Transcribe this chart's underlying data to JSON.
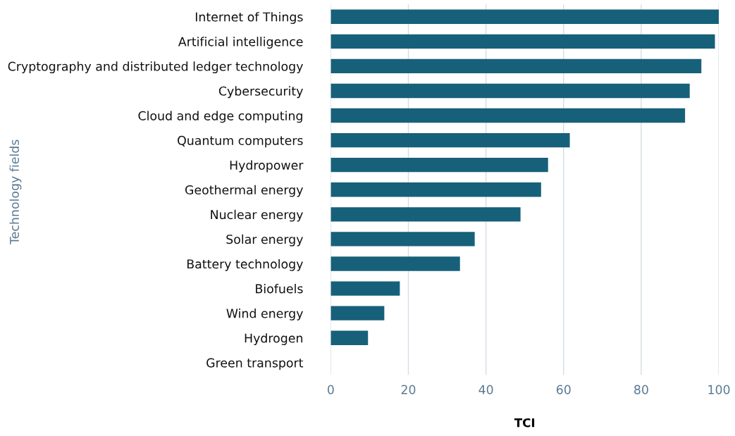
{
  "chart_data": {
    "type": "bar",
    "orientation": "horizontal",
    "categories": [
      "Internet of Things",
      "Artificial intelligence",
      "Cryptography and distributed ledger technology",
      "Cybersecurity",
      "Cloud and edge computing",
      "Quantum computers",
      "Hydropower",
      "Geothermal energy",
      "Nuclear energy",
      "Solar energy",
      "Battery technology",
      "Biofuels",
      "Wind energy",
      "Hydrogen",
      "Green transport"
    ],
    "values": [
      100,
      99,
      95.5,
      92.5,
      91.3,
      61.6,
      56,
      54.2,
      48.9,
      37.1,
      33.3,
      17.8,
      13.8,
      9.6,
      0
    ],
    "color": "#17607a",
    "xlabel": "TCI",
    "ylabel": "Technology fields",
    "xlim": [
      0,
      100
    ],
    "xticks": [
      0,
      20,
      40,
      60,
      80,
      100
    ],
    "grid": "x",
    "legend": false
  }
}
